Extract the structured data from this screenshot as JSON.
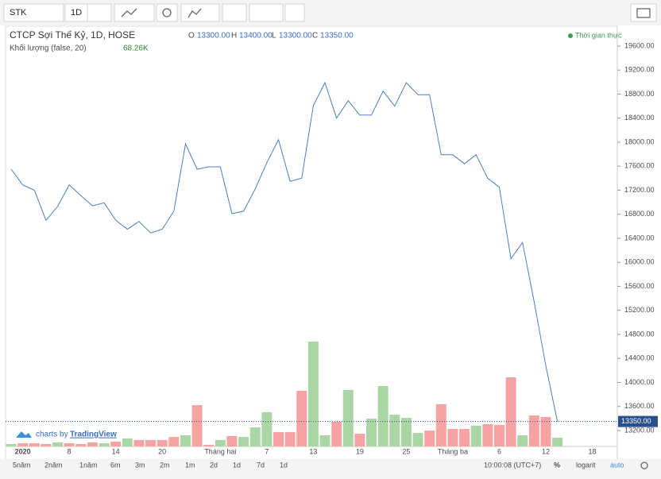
{
  "toolbar": {
    "symbol": "STK",
    "interval": "1D"
  },
  "legend": {
    "title": "CTCP Sợi Thế Kỷ, 1D, HOSE",
    "o_label": "O",
    "o": "13300.00",
    "h_label": "H",
    "h": "13400.00",
    "l_label": "L",
    "l": "13300.00",
    "c_label": "C",
    "c": "13350.00",
    "realtime": "Thời gian thực",
    "volume_title": "Khối lượng (false, 20)",
    "volume_value": "68.26K"
  },
  "branding": {
    "prefix": "charts by",
    "name": "TradingView"
  },
  "bottom_bar": {
    "ranges": [
      "5năm",
      "2năm",
      "1năm",
      "6m",
      "3m",
      "2m",
      "1m",
      "2d",
      "1d",
      "7d",
      "1d"
    ],
    "time": "10:00:08 (UTC+7)",
    "percent": "%",
    "log": "logarit",
    "auto": "auto"
  },
  "chart_data": {
    "type": "line",
    "categories": [
      null,
      "2020",
      null,
      null,
      null,
      "8",
      null,
      null,
      null,
      "14",
      null,
      null,
      null,
      "20",
      null,
      null,
      null,
      null,
      "Tháng hai",
      null,
      null,
      null,
      "7",
      null,
      null,
      null,
      "13",
      null,
      null,
      null,
      "19",
      null,
      null,
      null,
      "25",
      null,
      null,
      null,
      "Tháng ba",
      null,
      null,
      null,
      "6",
      null,
      null,
      null,
      "12",
      null,
      null,
      null,
      "18"
    ],
    "series": [
      {
        "name": "STK",
        "color": "#4a7fc1",
        "values": [
          17550,
          17290,
          17200,
          16700,
          16930,
          17290,
          17110,
          16940,
          16990,
          16700,
          16550,
          16680,
          16490,
          16550,
          16850,
          17970,
          17550,
          17590,
          17590,
          16810,
          16850,
          17220,
          17660,
          18040,
          17350,
          17400,
          18610,
          18990,
          18400,
          18690,
          18450,
          18450,
          18850,
          18600,
          18990,
          18790,
          18790,
          17790,
          17790,
          17640,
          17790,
          17400,
          17250,
          16060,
          16330,
          15340,
          14280,
          13350,
          null,
          null,
          null
        ]
      }
    ],
    "volume": {
      "colors": {
        "up": "#a9d6a4",
        "down": "#f7a3a3"
      },
      "values": [
        19,
        25,
        25,
        19,
        31,
        25,
        19,
        31,
        25,
        37,
        62,
        50,
        50,
        50,
        74,
        87,
        322,
        12,
        50,
        81,
        74,
        149,
        267,
        112,
        112,
        434,
        818,
        87,
        192,
        440,
        99,
        217,
        471,
        248,
        223,
        105,
        124,
        329,
        136,
        136,
        161,
        174,
        167,
        539,
        87,
        242,
        229,
        68.26,
        null,
        null,
        null
      ],
      "up": [
        true,
        false,
        false,
        false,
        true,
        false,
        false,
        false,
        true,
        false,
        true,
        false,
        false,
        false,
        false,
        true,
        false,
        false,
        true,
        false,
        true,
        true,
        true,
        false,
        false,
        false,
        true,
        true,
        false,
        true,
        false,
        true,
        true,
        true,
        true,
        true,
        false,
        false,
        false,
        false,
        true,
        false,
        false,
        false,
        true,
        false,
        false,
        true,
        null,
        null,
        null
      ]
    },
    "last_price_label": "13350.00",
    "ylim": [
      12935,
      19930
    ],
    "yticks": [
      13200,
      13600,
      14000,
      14400,
      14800,
      15200,
      15600,
      16000,
      16400,
      16800,
      17200,
      17600,
      18000,
      18400,
      18800,
      19200,
      19600
    ],
    "ytick_labels": [
      "13200.00",
      "13600.00",
      "14000.00",
      "14400.00",
      "14800.00",
      "15200.00",
      "15600.00",
      "16000.00",
      "16400.00",
      "16800.00",
      "17200.00",
      "17600.00",
      "18000.00",
      "18400.00",
      "18800.00",
      "19200.00",
      "19600.00"
    ],
    "grid": false
  }
}
